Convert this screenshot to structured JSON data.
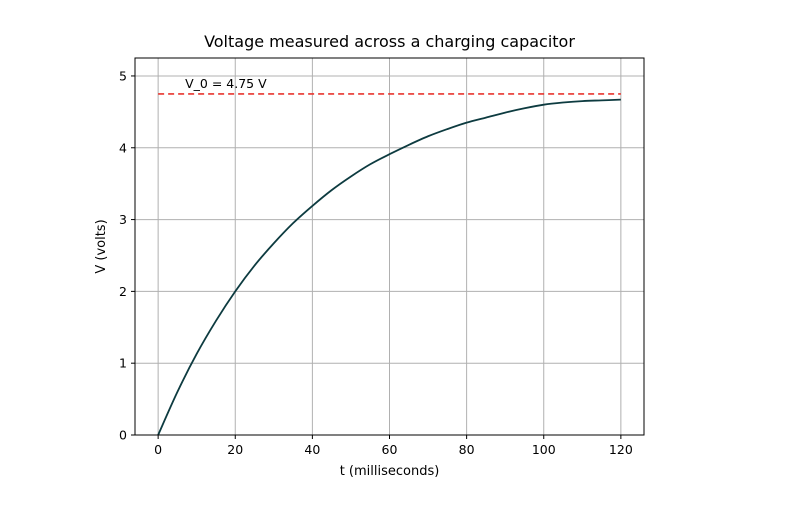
{
  "chart_data": {
    "type": "line",
    "title": "Voltage measured across a charging capacitor",
    "xlabel": "t (milliseconds)",
    "ylabel": "V (volts)",
    "xlim": [
      -6,
      126
    ],
    "ylim": [
      0,
      5.25
    ],
    "xticks": [
      0,
      20,
      40,
      60,
      80,
      100,
      120
    ],
    "yticks": [
      0,
      1,
      2,
      3,
      4,
      5
    ],
    "grid": true,
    "series": [
      {
        "color": "#0d3b40",
        "x": [
          0,
          5,
          10,
          15,
          20,
          25,
          30,
          35,
          40,
          45,
          50,
          55,
          60,
          65,
          70,
          75,
          80,
          85,
          90,
          95,
          100,
          105,
          110,
          115,
          120
        ],
        "y": [
          0.0,
          0.6,
          1.13,
          1.59,
          2.0,
          2.36,
          2.67,
          2.95,
          3.19,
          3.41,
          3.6,
          3.77,
          3.91,
          4.04,
          4.16,
          4.26,
          4.35,
          4.42,
          4.49,
          4.55,
          4.6,
          4.63,
          4.65,
          4.66,
          4.67
        ]
      }
    ],
    "reference_line": {
      "y": 4.75,
      "x_range": [
        0,
        120
      ],
      "color": "#e8352e",
      "style": "dashed",
      "label": "V_0 = 4.75 V",
      "label_x": 7
    }
  }
}
